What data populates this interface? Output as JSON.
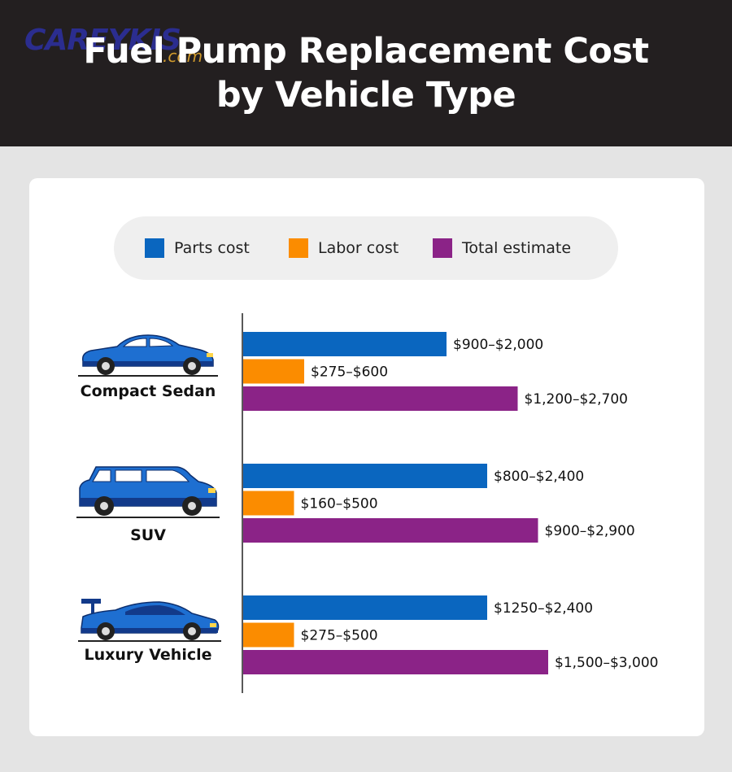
{
  "header": {
    "title_line1": "Fuel Pump Replacement Cost",
    "title_line2": "by Vehicle Type",
    "logo_main": "CAREYKIS",
    "logo_sub": ".com"
  },
  "colors": {
    "parts": "#0a66bf",
    "labor": "#fb8c00",
    "total": "#8b2387",
    "car_body": "#1e6fd1",
    "car_dark": "#123a8a"
  },
  "legend": [
    {
      "label": "Parts cost",
      "color": "#0a66bf"
    },
    {
      "label": "Labor cost",
      "color": "#fb8c00"
    },
    {
      "label": "Total estimate",
      "color": "#8b2387"
    }
  ],
  "vehicles": [
    {
      "name": "Compact Sedan",
      "icon": "sedan-car-icon"
    },
    {
      "name": "SUV",
      "icon": "suv-car-icon"
    },
    {
      "name": "Luxury Vehicle",
      "icon": "sports-car-icon"
    }
  ],
  "chart_data": {
    "type": "bar",
    "orientation": "horizontal",
    "categories": [
      "Compact Sedan",
      "SUV",
      "Luxury Vehicle"
    ],
    "series": [
      {
        "name": "Parts cost",
        "ranges": [
          [
            900,
            2000
          ],
          [
            800,
            2400
          ],
          [
            1250,
            2400
          ]
        ],
        "labels": [
          "$900–$2,000",
          "$800–$2,400",
          "$1250–$2,400"
        ]
      },
      {
        "name": "Labor cost",
        "ranges": [
          [
            275,
            600
          ],
          [
            160,
            500
          ],
          [
            275,
            500
          ]
        ],
        "labels": [
          "$275–$600",
          "$160–$500",
          "$275–$500"
        ]
      },
      {
        "name": "Total estimate",
        "ranges": [
          [
            1200,
            2700
          ],
          [
            900,
            2900
          ],
          [
            1500,
            3000
          ]
        ],
        "labels": [
          "$1,200–$2,700",
          "$900–$2,900",
          "$1,500–$3,000"
        ]
      }
    ],
    "bar_value": "upper bound of range",
    "title": "Fuel Pump Replacement Cost by Vehicle Type",
    "xlim": [
      0,
      4400
    ],
    "grid": false,
    "legend_position": "top"
  }
}
